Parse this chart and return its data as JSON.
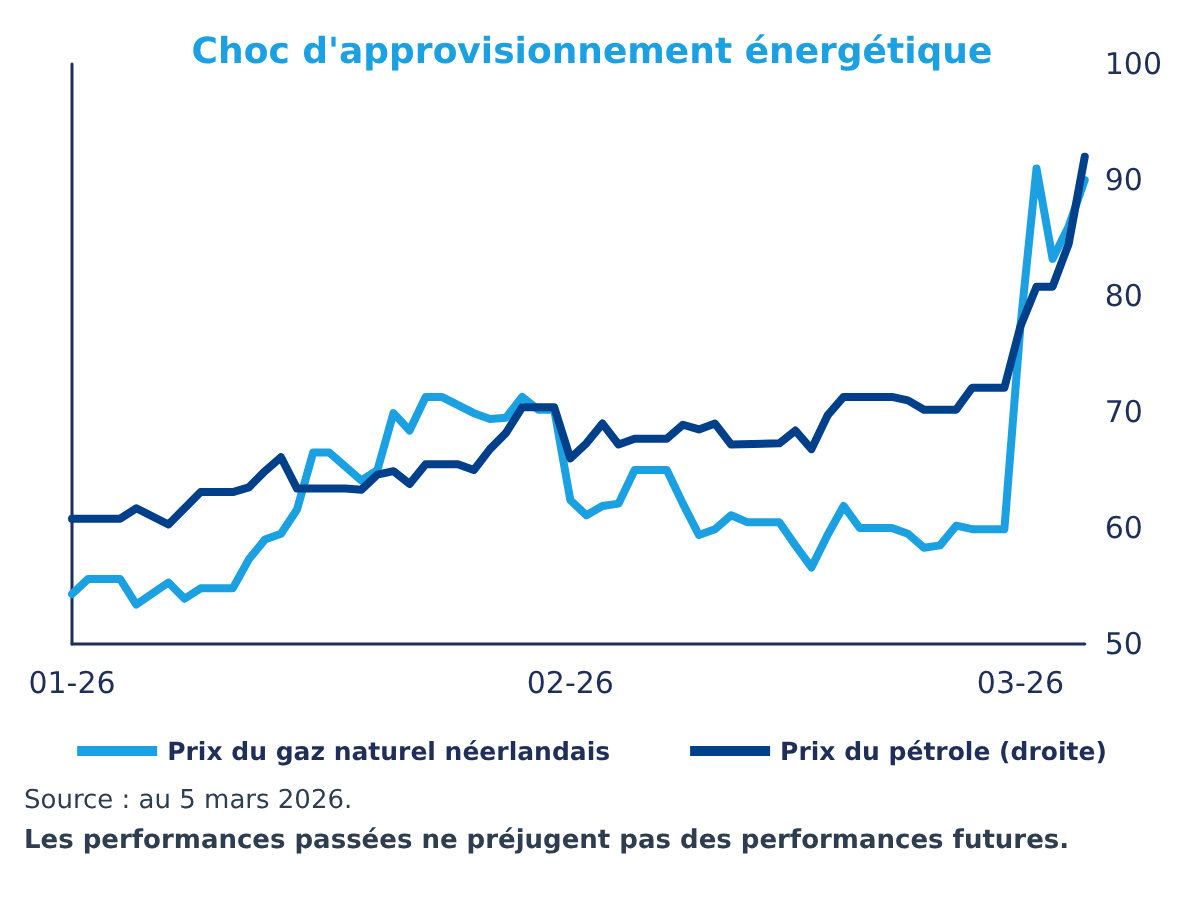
{
  "chart_data": {
    "type": "line",
    "title": "Choc d'approvisionnement énergétique",
    "series": [
      {
        "name": "Prix du gaz naturel néerlandais",
        "color": "#1ba1e2",
        "x": [
          "2026-01-01",
          "2026-01-02",
          "2026-01-04",
          "2026-01-05",
          "2026-01-07",
          "2026-01-08",
          "2026-01-09",
          "2026-01-11",
          "2026-01-12",
          "2026-01-13",
          "2026-01-14",
          "2026-01-15",
          "2026-01-16",
          "2026-01-17",
          "2026-01-19",
          "2026-01-20",
          "2026-01-21",
          "2026-01-22",
          "2026-01-23",
          "2026-01-24",
          "2026-01-26",
          "2026-01-27",
          "2026-01-28",
          "2026-01-29",
          "2026-01-30",
          "2026-01-31",
          "2026-02-01",
          "2026-02-02",
          "2026-02-03",
          "2026-02-04",
          "2026-02-05",
          "2026-02-07",
          "2026-02-08",
          "2026-02-09",
          "2026-02-10",
          "2026-02-11",
          "2026-02-12",
          "2026-02-14",
          "2026-02-15",
          "2026-02-16",
          "2026-02-17",
          "2026-02-18",
          "2026-02-19",
          "2026-02-21",
          "2026-02-22",
          "2026-02-23",
          "2026-02-24",
          "2026-02-25",
          "2026-02-26",
          "2026-02-28",
          "2026-03-01",
          "2026-03-02",
          "2026-03-03",
          "2026-03-04",
          "2026-03-05"
        ],
        "values": [
          54.3,
          55.6,
          55.6,
          53.4,
          55.3,
          53.9,
          54.8,
          54.8,
          57.3,
          59,
          59.5,
          61.6,
          66.5,
          66.5,
          64.1,
          65,
          69.9,
          68.4,
          71.3,
          71.3,
          69.9,
          69.4,
          69.5,
          71.3,
          70.2,
          70.2,
          62.4,
          61.1,
          61.9,
          62.1,
          65,
          65,
          62.1,
          59.4,
          59.9,
          61.1,
          60.5,
          60.5,
          58.5,
          56.6,
          59.4,
          61.9,
          60,
          60,
          59.5,
          58.3,
          58.5,
          60.2,
          59.9,
          59.9,
          77.4,
          91,
          83.2,
          86,
          90
        ]
      },
      {
        "name": "Prix du pétrole (droite)",
        "color": "#003f8a",
        "x": [
          "2026-01-01",
          "2026-01-04",
          "2026-01-05",
          "2026-01-07",
          "2026-01-08",
          "2026-01-09",
          "2026-01-11",
          "2026-01-12",
          "2026-01-13",
          "2026-01-14",
          "2026-01-15",
          "2026-01-18",
          "2026-01-19",
          "2026-01-20",
          "2026-01-21",
          "2026-01-22",
          "2026-01-23",
          "2026-01-25",
          "2026-01-26",
          "2026-01-27",
          "2026-01-28",
          "2026-01-29",
          "2026-01-31",
          "2026-02-01",
          "2026-02-02",
          "2026-02-03",
          "2026-02-04",
          "2026-02-05",
          "2026-02-07",
          "2026-02-08",
          "2026-02-09",
          "2026-02-10",
          "2026-02-11",
          "2026-02-14",
          "2026-02-15",
          "2026-02-16",
          "2026-02-17",
          "2026-02-18",
          "2026-02-21",
          "2026-02-22",
          "2026-02-23",
          "2026-02-25",
          "2026-02-26",
          "2026-02-28",
          "2026-03-01",
          "2026-03-02",
          "2026-03-03",
          "2026-03-04",
          "2026-03-05"
        ],
        "values": [
          60.8,
          60.8,
          61.7,
          60.3,
          61.7,
          63.1,
          63.1,
          63.5,
          64.9,
          66.1,
          63.4,
          63.4,
          63.3,
          64.6,
          64.9,
          63.8,
          65.5,
          65.5,
          65,
          66.8,
          68.2,
          70.4,
          70.4,
          66,
          67.3,
          69,
          67.2,
          67.7,
          67.7,
          68.9,
          68.5,
          69,
          67.2,
          67.3,
          68.4,
          66.8,
          69.7,
          71.3,
          71.3,
          71,
          70.2,
          70.2,
          72.1,
          72.1,
          77.4,
          80.8,
          80.8,
          84.5,
          92
        ]
      }
    ],
    "xlim": [
      "2026-01-01",
      "2026-03-05"
    ],
    "xticks": [
      {
        "value": "2026-01-01",
        "label": "01-26"
      },
      {
        "value": "2026-02-01",
        "label": "02-26"
      },
      {
        "value": "2026-03-01",
        "label": "03-26"
      }
    ],
    "ylim": [
      50,
      100
    ],
    "yticks": [
      50,
      60,
      70,
      80,
      90,
      100
    ],
    "grid": false,
    "legend": "bottom",
    "marker": "none",
    "line_style": "solid",
    "annotations": [
      "Source : au 5 mars 2026.",
      "Les performances passées ne préjugent pas des performances futures."
    ]
  }
}
